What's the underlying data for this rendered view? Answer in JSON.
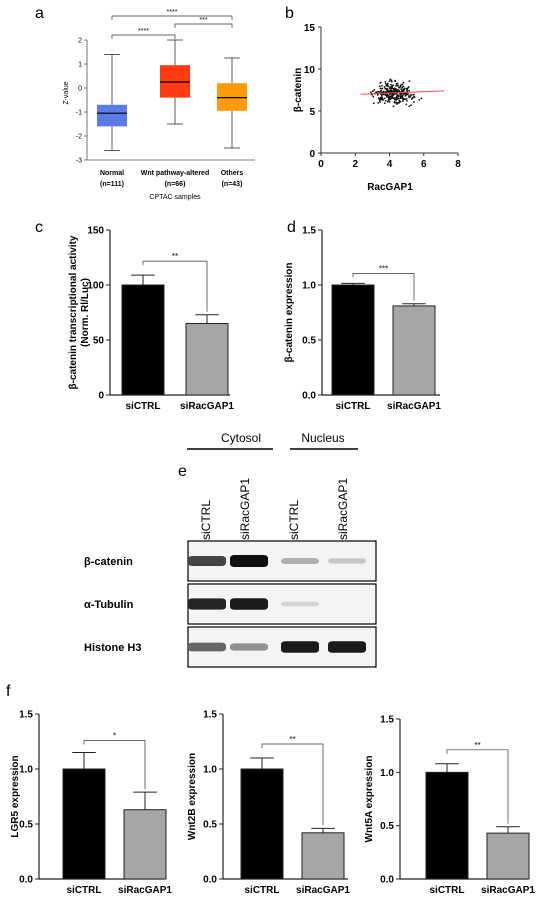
{
  "panel_labels": {
    "a": "a",
    "b": "b",
    "c": "c",
    "d": "d",
    "e": "e",
    "f": "f"
  },
  "colors": {
    "normal": "#5b7be8",
    "wnt": "#ff3b0f",
    "others": "#ff9a0a",
    "bar_ctrl": "#000000",
    "bar_si": "#a6a6a8",
    "scatter": "#111111",
    "fit": "#ff4a4a"
  },
  "chart_data": [
    {
      "id": "a",
      "type": "box",
      "ylabel": "Z-value",
      "xlabel": "CPTAC samples",
      "ylim": [
        -3,
        2
      ],
      "yticks": [
        "-3",
        "-2",
        "-1",
        "0",
        "1",
        "2"
      ],
      "categories": [
        "Normal",
        "Wnt pathway-altered",
        "Others"
      ],
      "category_n": [
        "(n=111)",
        "(n=66)",
        "(n=43)"
      ],
      "boxes": [
        {
          "name": "Normal",
          "min": -2.6,
          "q1": -1.6,
          "median": -1.05,
          "q3": -0.7,
          "max": 1.4
        },
        {
          "name": "Wnt pathway-altered",
          "min": -1.5,
          "q1": -0.4,
          "median": 0.25,
          "q3": 0.95,
          "max": 2.0
        },
        {
          "name": "Others",
          "min": -2.5,
          "q1": -0.95,
          "median": -0.4,
          "q3": 0.2,
          "max": 1.25
        }
      ],
      "significance": [
        {
          "from": 0,
          "to": 1,
          "label": "****"
        },
        {
          "from": 0,
          "to": 2,
          "label": "****"
        },
        {
          "from": 1,
          "to": 2,
          "label": "***"
        }
      ]
    },
    {
      "id": "b",
      "type": "scatter",
      "xlabel": "RacGAP1",
      "ylabel": "β-catenin",
      "xlim": [
        0,
        8
      ],
      "ylim": [
        0,
        15
      ],
      "xticks": [
        "0",
        "2",
        "4",
        "6",
        "8"
      ],
      "yticks": [
        "0",
        "5",
        "10",
        "15"
      ],
      "fit": {
        "x": [
          2.3,
          7.2
        ],
        "y": [
          7.0,
          7.4
        ]
      }
    },
    {
      "id": "c",
      "type": "bar",
      "categories": [
        "siCTRL",
        "siRacGAP1"
      ],
      "values": [
        100,
        65
      ],
      "errors": [
        9,
        8
      ],
      "ylim": [
        0,
        150
      ],
      "yticks": [
        "0",
        "50",
        "100",
        "150"
      ],
      "ylabel": "β-catenin transcriptional activity",
      "ylabel2": "(Norm. Rl/Luc)",
      "significance": "**"
    },
    {
      "id": "d",
      "type": "bar",
      "categories": [
        "siCTRL",
        "siRacGAP1"
      ],
      "values": [
        1.0,
        0.81
      ],
      "errors": [
        0.015,
        0.02
      ],
      "ylim": [
        0,
        1.5
      ],
      "yticks": [
        "0.0",
        "0.5",
        "1.0",
        "1.5"
      ],
      "ylabel": "β-catenin expression",
      "significance": "***"
    },
    {
      "id": "f1",
      "type": "bar",
      "categories": [
        "siCTRL",
        "siRacGAP1"
      ],
      "values": [
        1.0,
        0.63
      ],
      "errors": [
        0.15,
        0.16
      ],
      "ylim": [
        0,
        1.5
      ],
      "yticks": [
        "0.0",
        "0.5",
        "1.0",
        "1.5"
      ],
      "ylabel": "LGR5 expression",
      "significance": "*"
    },
    {
      "id": "f2",
      "type": "bar",
      "categories": [
        "siCTRL",
        "siRacGAP1"
      ],
      "values": [
        1.0,
        0.42
      ],
      "errors": [
        0.1,
        0.04
      ],
      "ylim": [
        0,
        1.5
      ],
      "yticks": [
        "0.0",
        "0.5",
        "1.0",
        "1.5"
      ],
      "ylabel": "Wnt2B expression",
      "significance": "**"
    },
    {
      "id": "f3",
      "type": "bar",
      "categories": [
        "siCTRL",
        "siRacGAP1"
      ],
      "values": [
        1.0,
        0.43
      ],
      "errors": [
        0.08,
        0.06
      ],
      "ylim": [
        0,
        1.5
      ],
      "yticks": [
        "0.0",
        "0.5",
        "1.0",
        "1.5"
      ],
      "ylabel": "Wnt5A expression",
      "significance": "**"
    }
  ],
  "western_blot": {
    "groups": [
      "Cytosol",
      "Nucleus"
    ],
    "lanes": [
      "siCTRL",
      "siRacGAP1",
      "siCTRL",
      "siRacGAP1"
    ],
    "rows": [
      {
        "label": "β-catenin",
        "intensity": [
          0.75,
          1.0,
          0.25,
          0.15
        ]
      },
      {
        "label": "α-Tubulin",
        "intensity": [
          0.9,
          0.95,
          0.08,
          0.0
        ]
      },
      {
        "label": "Histone H3",
        "intensity": [
          0.6,
          0.4,
          0.95,
          0.95
        ]
      }
    ]
  }
}
